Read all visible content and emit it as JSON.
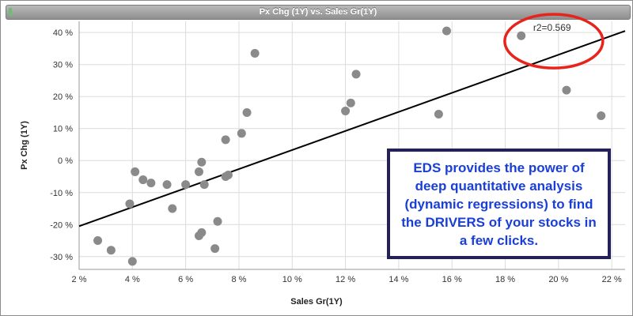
{
  "chart_data": {
    "type": "scatter",
    "title": "Px Chg (1Y) vs. Sales Gr(1Y)",
    "xlabel": "Sales Gr(1Y)",
    "ylabel": "Px Chg (1Y)",
    "xlim": [
      0.02,
      0.225
    ],
    "ylim": [
      -0.34,
      0.435
    ],
    "x_ticks": [
      {
        "value": 0.02,
        "label": "2 %"
      },
      {
        "value": 0.04,
        "label": "4 %"
      },
      {
        "value": 0.06,
        "label": "6 %"
      },
      {
        "value": 0.08,
        "label": "8 %"
      },
      {
        "value": 0.1,
        "label": "10 %"
      },
      {
        "value": 0.12,
        "label": "12 %"
      },
      {
        "value": 0.14,
        "label": "14 %"
      },
      {
        "value": 0.16,
        "label": "16 %"
      },
      {
        "value": 0.18,
        "label": "18 %"
      },
      {
        "value": 0.2,
        "label": "20 %"
      },
      {
        "value": 0.22,
        "label": "22 %"
      }
    ],
    "y_ticks": [
      {
        "value": 0.4,
        "label": "40 %"
      },
      {
        "value": 0.3,
        "label": "30 %"
      },
      {
        "value": 0.2,
        "label": "20 %"
      },
      {
        "value": 0.1,
        "label": "10 %"
      },
      {
        "value": 0.0,
        "label": "0 %"
      },
      {
        "value": -0.1,
        "label": "-10 %"
      },
      {
        "value": -0.2,
        "label": "-20 %"
      },
      {
        "value": -0.3,
        "label": "-30 %"
      }
    ],
    "grid": true,
    "points": [
      {
        "x": 0.027,
        "y": -0.25
      },
      {
        "x": 0.032,
        "y": -0.28
      },
      {
        "x": 0.039,
        "y": -0.135
      },
      {
        "x": 0.04,
        "y": -0.315
      },
      {
        "x": 0.041,
        "y": -0.035
      },
      {
        "x": 0.044,
        "y": -0.06
      },
      {
        "x": 0.047,
        "y": -0.07
      },
      {
        "x": 0.053,
        "y": -0.075
      },
      {
        "x": 0.055,
        "y": -0.15
      },
      {
        "x": 0.06,
        "y": -0.075
      },
      {
        "x": 0.065,
        "y": -0.035
      },
      {
        "x": 0.065,
        "y": -0.235
      },
      {
        "x": 0.066,
        "y": -0.225
      },
      {
        "x": 0.066,
        "y": -0.005
      },
      {
        "x": 0.067,
        "y": -0.075
      },
      {
        "x": 0.071,
        "y": -0.275
      },
      {
        "x": 0.072,
        "y": -0.19
      },
      {
        "x": 0.075,
        "y": 0.065
      },
      {
        "x": 0.075,
        "y": -0.05
      },
      {
        "x": 0.076,
        "y": -0.045
      },
      {
        "x": 0.081,
        "y": 0.085
      },
      {
        "x": 0.083,
        "y": 0.15
      },
      {
        "x": 0.086,
        "y": 0.335
      },
      {
        "x": 0.12,
        "y": 0.155
      },
      {
        "x": 0.122,
        "y": 0.18
      },
      {
        "x": 0.124,
        "y": 0.27
      },
      {
        "x": 0.155,
        "y": 0.145
      },
      {
        "x": 0.158,
        "y": 0.405
      },
      {
        "x": 0.186,
        "y": 0.39
      },
      {
        "x": 0.203,
        "y": 0.22
      },
      {
        "x": 0.216,
        "y": 0.14
      }
    ],
    "trendline": {
      "x": [
        0.02,
        0.225
      ],
      "y": [
        -0.205,
        0.405
      ]
    },
    "r2_label": "r2=0.569",
    "point_color": "#8a8a8a",
    "line_color": "#000000",
    "highlight_color": "#e8231b",
    "callout": {
      "text": "EDS provides the power of deep quantitative analysis (dynamic regressions) to find the DRIVERS of your stocks in a few clicks.",
      "text_color": "#1a3fd6",
      "border_color": "#23205a"
    }
  }
}
